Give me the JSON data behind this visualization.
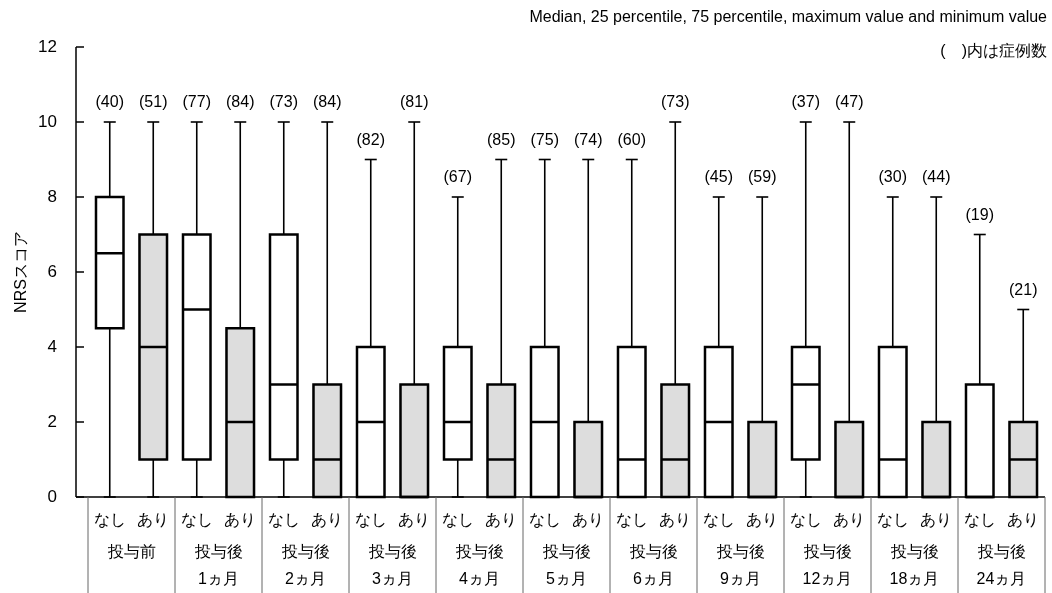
{
  "chart_data": {
    "type": "box",
    "ylabel": "NRSスコア",
    "annotations": [
      "Median, 25 percentile, 75 percentile, maximum value and minimum value",
      "(　)内は症例数"
    ],
    "categories": [
      "投与前",
      "投与後 1ヵ月",
      "投与後 2ヵ月",
      "投与後 3ヵ月",
      "投与後 4ヵ月",
      "投与後 5ヵ月",
      "投与後 6ヵ月",
      "投与後 9ヵ月",
      "投与後 12ヵ月",
      "投与後 18ヵ月",
      "投与後 24ヵ月"
    ],
    "ylim": [
      0,
      12
    ],
    "yticks": [
      0,
      2,
      4,
      6,
      8,
      10,
      12
    ],
    "series": [
      {
        "name": "なし",
        "color": "#ffffff",
        "boxes": [
          {
            "low": 0,
            "q1": 4.5,
            "median": 6.5,
            "q3": 8,
            "high": 10
          },
          {
            "low": 0,
            "q1": 1,
            "median": 5,
            "q3": 7,
            "high": 10
          },
          {
            "low": 0,
            "q1": 1,
            "median": 3,
            "q3": 7,
            "high": 10
          },
          {
            "low": 0,
            "q1": 0,
            "median": 2,
            "q3": 4,
            "high": 9
          },
          {
            "low": 0,
            "q1": 1,
            "median": 2,
            "q3": 4,
            "high": 8
          },
          {
            "low": 0,
            "q1": 0,
            "median": 2,
            "q3": 4,
            "high": 9
          },
          {
            "low": 0,
            "q1": 0,
            "median": 1,
            "q3": 4,
            "high": 9
          },
          {
            "low": 0,
            "q1": 0,
            "median": 2,
            "q3": 4,
            "high": 8
          },
          {
            "low": 0,
            "q1": 1,
            "median": 3,
            "q3": 4,
            "high": 10
          },
          {
            "low": 0,
            "q1": 0,
            "median": 1,
            "q3": 4,
            "high": 8
          },
          {
            "low": 0,
            "q1": 0,
            "median": 0,
            "q3": 3,
            "high": 7
          }
        ],
        "value_labels": [
          "(40)",
          "(77)",
          "(73)",
          "(82)",
          "(67)",
          "(75)",
          "(60)",
          "(45)",
          "(37)",
          "(30)",
          "(19)"
        ]
      },
      {
        "name": "あり",
        "color": "#dddddd",
        "boxes": [
          {
            "low": 0,
            "q1": 1,
            "median": 4,
            "q3": 7,
            "high": 10
          },
          {
            "low": 0,
            "q1": 0,
            "median": 2,
            "q3": 4.5,
            "high": 10
          },
          {
            "low": 0,
            "q1": 0,
            "median": 1,
            "q3": 3,
            "high": 10
          },
          {
            "low": 0,
            "q1": 0,
            "median": 0,
            "q3": 3,
            "high": 10
          },
          {
            "low": 0,
            "q1": 0,
            "median": 1,
            "q3": 3,
            "high": 9
          },
          {
            "low": 0,
            "q1": 0,
            "median": 0,
            "q3": 2,
            "high": 9
          },
          {
            "low": 0,
            "q1": 0,
            "median": 1,
            "q3": 3,
            "high": 10
          },
          {
            "low": 0,
            "q1": 0,
            "median": 0,
            "q3": 2,
            "high": 8
          },
          {
            "low": 0,
            "q1": 0,
            "median": 0,
            "q3": 2,
            "high": 10
          },
          {
            "low": 0,
            "q1": 0,
            "median": 0,
            "q3": 2,
            "high": 8
          },
          {
            "low": 0,
            "q1": 0,
            "median": 1,
            "q3": 2,
            "high": 5
          }
        ],
        "value_labels": [
          "(51)",
          "(84)",
          "(84)",
          "(81)",
          "(85)",
          "(74)",
          "(73)",
          "(59)",
          "(47)",
          "(44)",
          "(21)"
        ]
      }
    ]
  }
}
